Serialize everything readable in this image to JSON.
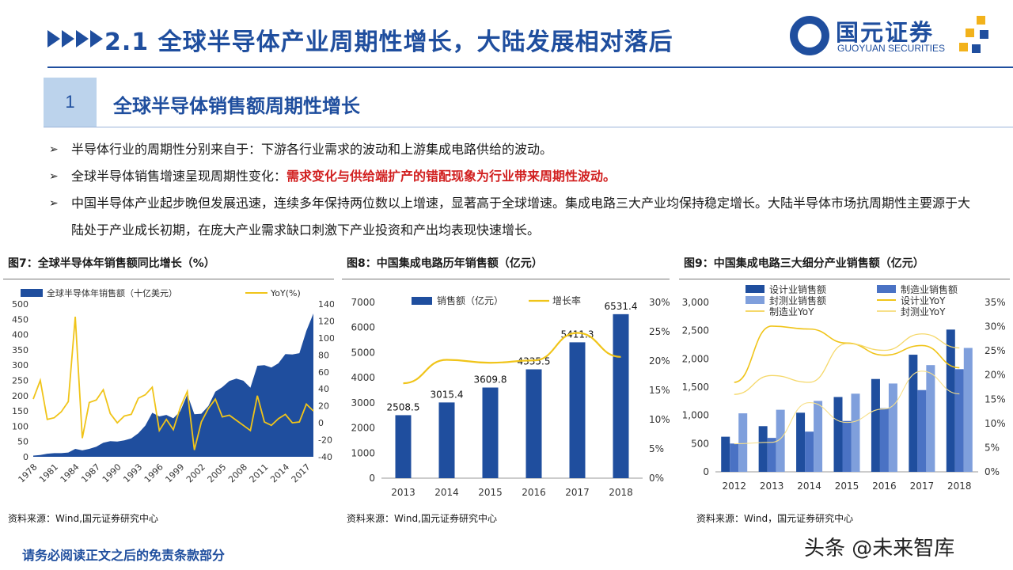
{
  "header": {
    "title": "2.1 全球半导体产业周期性增长，大陆发展相对落后",
    "logo_cn": "国元证券",
    "logo_en": "GUOYUAN SECURITIES"
  },
  "section": {
    "number": "1",
    "title": "全球半导体销售额周期性增长"
  },
  "bullets": [
    {
      "text": "半导体行业的周期性分别来自于：下游各行业需求的波动和上游集成电路供给的波动。"
    },
    {
      "text": "全球半导体销售增速呈现周期性变化：",
      "highlight": "需求变化与供给端扩产的错配现象为行业带来周期性波动。"
    },
    {
      "text": "中国半导体产业起步晚但发展迅速，连续多年保持两位数以上增速，显著高于全球增速。集成电路三大产业均保持稳定增长。大陆半导体市场抗周期性主要源于大陆处于产业成长初期，在庞大产业需求缺口刺激下产业投资和产出均表现快速增长。"
    }
  ],
  "colors": {
    "brand": "#1f4e9e",
    "accent_red": "#d11f1f",
    "bar_dark": "#1f4e9e",
    "bar_mid": "#4a72c4",
    "bar_light": "#7f9fdc",
    "line_yellow": "#f0c419",
    "logo_gold": "#f2b21b"
  },
  "icons": [
    "chevron-right-icon",
    "arrow-bullet-icon",
    "guoyuan-logo-icon"
  ],
  "chart_data": [
    {
      "type": "area",
      "title": "图7：全球半导体年销售额同比增长（%）",
      "x": [
        1978,
        1979,
        1980,
        1981,
        1982,
        1983,
        1984,
        1985,
        1986,
        1987,
        1988,
        1989,
        1990,
        1991,
        1992,
        1993,
        1994,
        1995,
        1996,
        1997,
        1998,
        1999,
        2000,
        2001,
        2002,
        2003,
        2004,
        2005,
        2006,
        2007,
        2008,
        2009,
        2010,
        2011,
        2012,
        2013,
        2014,
        2015,
        2016,
        2017,
        2018
      ],
      "xticks": [
        "1978",
        "1981",
        "1984",
        "1987",
        "1990",
        "1993",
        "1996",
        "1999",
        "2002",
        "2005",
        "2008",
        "2011",
        "2014",
        "2017"
      ],
      "series": [
        {
          "name": "全球半导体年销售额（十亿美元）",
          "axis": "left",
          "values": [
            4,
            6,
            10,
            12,
            12,
            14,
            26,
            21,
            26,
            33,
            46,
            51,
            50,
            54,
            60,
            77,
            102,
            144,
            132,
            137,
            126,
            149,
            204,
            139,
            141,
            166,
            213,
            228,
            248,
            256,
            249,
            226,
            298,
            300,
            292,
            306,
            336,
            335,
            339,
            412,
            469
          ]
        },
        {
          "name": "YoY(%)",
          "axis": "right",
          "values": [
            28,
            50,
            4,
            6,
            13,
            25,
            125,
            -18,
            24,
            27,
            39,
            11,
            0,
            8,
            10,
            29,
            33,
            42,
            -9,
            4,
            -8,
            18,
            37,
            -32,
            1,
            17,
            28,
            7,
            9,
            3,
            -3,
            -9,
            32,
            1,
            -3,
            5,
            10,
            0,
            1,
            22,
            14
          ]
        }
      ],
      "ylim_left": [
        0,
        500
      ],
      "yticks_left": [
        0,
        50,
        100,
        150,
        200,
        250,
        300,
        350,
        400,
        450,
        500
      ],
      "ylim_right": [
        -40,
        140
      ],
      "yticks_right": [
        -40,
        -20,
        0,
        20,
        40,
        60,
        80,
        100,
        120,
        140
      ],
      "source": "资料来源：Wind,国元证券研究中心"
    },
    {
      "type": "bar",
      "title": "图8：中国集成电路历年销售额（亿元）",
      "categories": [
        "2013",
        "2014",
        "2015",
        "2016",
        "2017",
        "2018"
      ],
      "series": [
        {
          "name": "销售额（亿元）",
          "axis": "left",
          "values": [
            2508.5,
            3015.4,
            3609.8,
            4335.5,
            5411.3,
            6531.4
          ]
        },
        {
          "name": "增长率",
          "axis": "right",
          "values": [
            16.2,
            20.2,
            19.7,
            20.1,
            24.8,
            20.7
          ]
        }
      ],
      "data_labels": [
        "2508.5",
        "3015.4",
        "3609.8",
        "4335.5",
        "5411.3",
        "6531.4"
      ],
      "ylim_left": [
        0,
        7000
      ],
      "yticks_left": [
        "0",
        "1000",
        "2000",
        "3000",
        "4000",
        "5000",
        "6000",
        "7000"
      ],
      "ylim_right": [
        0,
        30
      ],
      "yticks_right": [
        "0%",
        "5%",
        "10%",
        "15%",
        "20%",
        "25%",
        "30%"
      ],
      "source": "资料来源：Wind,国元证券研究中心"
    },
    {
      "type": "bar",
      "title": "图9：中国集成电路三大细分产业销售额（亿元）",
      "categories": [
        "2012",
        "2013",
        "2014",
        "2015",
        "2016",
        "2017",
        "2018"
      ],
      "series": [
        {
          "name": "设计业销售额",
          "axis": "left",
          "values": [
            622,
            809,
            1047,
            1325,
            1644,
            2074,
            2519
          ]
        },
        {
          "name": "制造业销售额",
          "axis": "left",
          "values": [
            501,
            601,
            712,
            901,
            1127,
            1448,
            1818
          ]
        },
        {
          "name": "封测业销售额",
          "axis": "left",
          "values": [
            1036,
            1099,
            1256,
            1384,
            1564,
            1890,
            2194
          ]
        },
        {
          "name": "设计业YoY",
          "axis": "right",
          "values": [
            18.5,
            30.1,
            29.5,
            26.6,
            24.1,
            26.1,
            21.5
          ]
        },
        {
          "name": "制造业YoY",
          "axis": "right",
          "values": [
            16.0,
            19.9,
            18.5,
            26.5,
            25.1,
            28.5,
            25.6
          ]
        },
        {
          "name": "封测业YoY",
          "axis": "right",
          "values": [
            5.8,
            6.1,
            14.3,
            10.2,
            13.0,
            20.8,
            16.1
          ]
        }
      ],
      "ylim_left": [
        0,
        3000
      ],
      "yticks_left": [
        "0",
        "500",
        "1,000",
        "1,500",
        "2,000",
        "2,500",
        "3,000"
      ],
      "ylim_right": [
        0,
        35
      ],
      "yticks_right": [
        "0%",
        "5%",
        "10%",
        "15%",
        "20%",
        "25%",
        "30%",
        "35%"
      ],
      "source": "资料来源：Wind，国元证券研究中心"
    }
  ],
  "footer": {
    "disclaimer": "请务必阅读正文之后的免责条款部分",
    "watermark": "头条 @未来智库"
  }
}
